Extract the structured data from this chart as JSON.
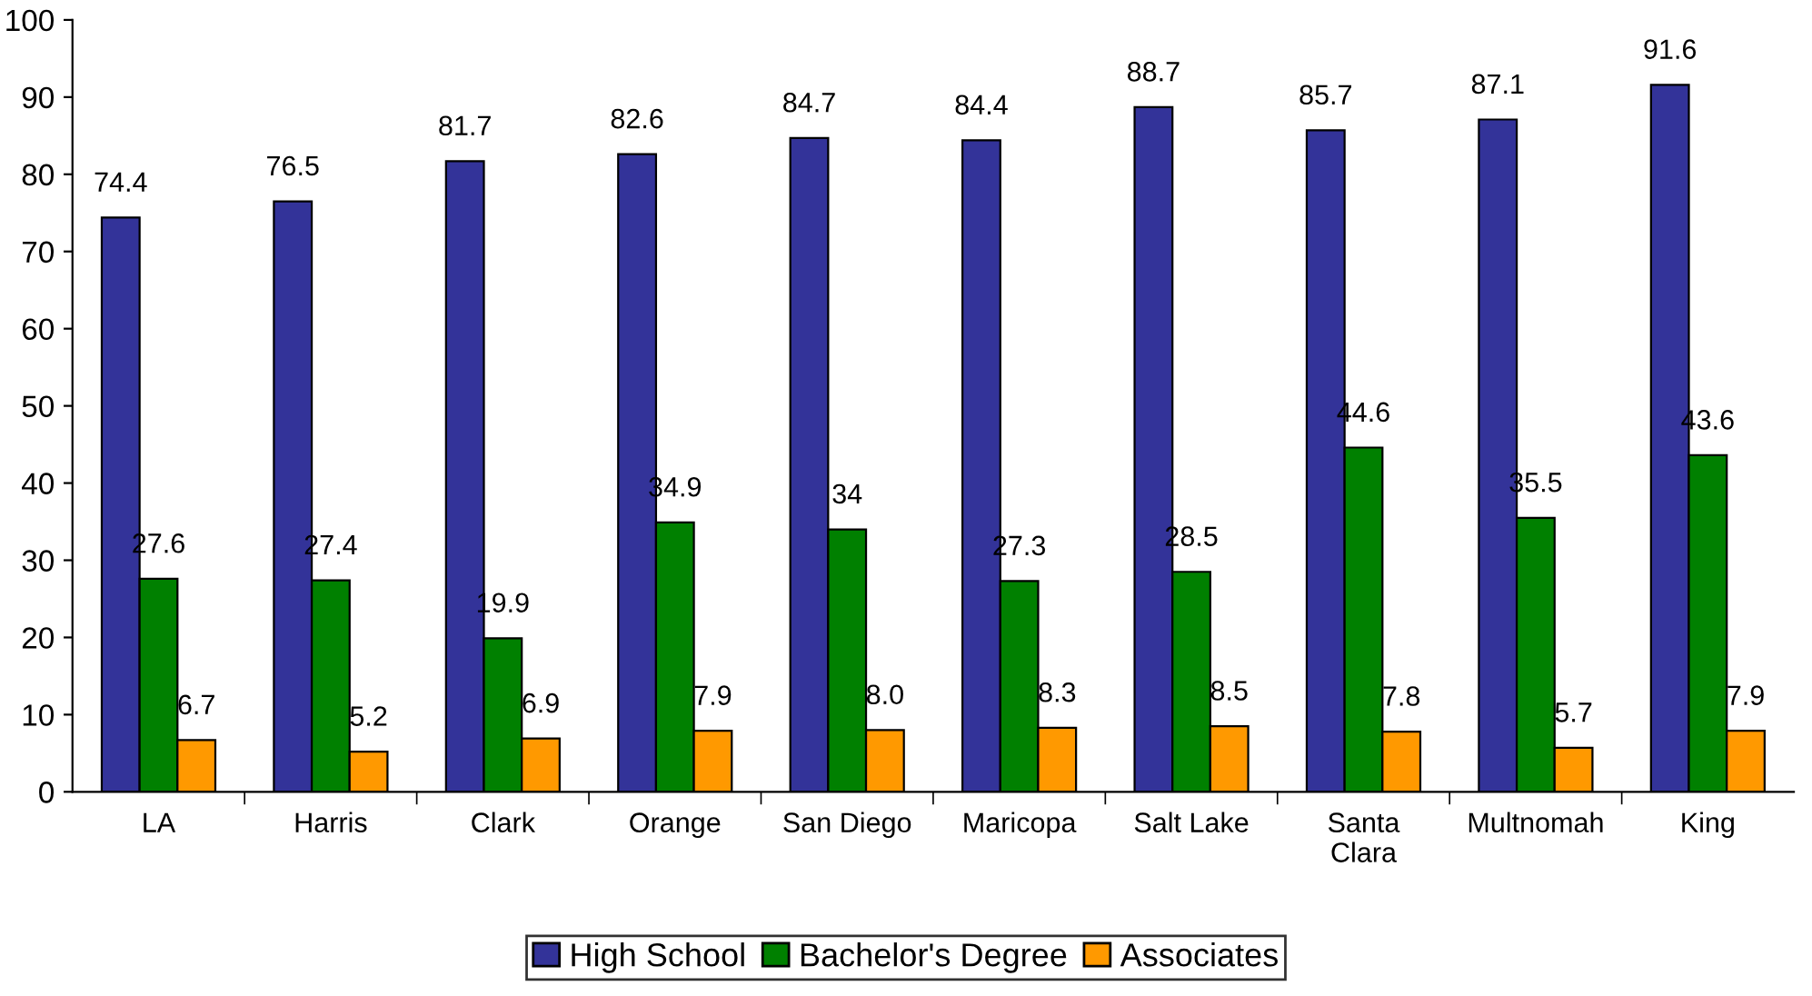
{
  "chart_data": {
    "type": "bar",
    "categories": [
      "LA",
      "Harris",
      "Clark",
      "Orange",
      "San Diego",
      "Maricopa",
      "Salt Lake",
      "Santa Clara",
      "Multnomah",
      "King"
    ],
    "series": [
      {
        "name": "High School",
        "color": "#333399",
        "values": [
          74.4,
          76.5,
          81.7,
          82.6,
          84.7,
          84.4,
          88.7,
          85.7,
          87.1,
          91.6
        ],
        "value_labels": [
          "74.4",
          "76.5",
          "81.7",
          "82.6",
          "84.7",
          "84.4",
          "88.7",
          "85.7",
          "87.1",
          "91.6"
        ]
      },
      {
        "name": "Bachelor's Degree",
        "color": "#008000",
        "values": [
          27.6,
          27.4,
          19.9,
          34.9,
          34,
          27.3,
          28.5,
          44.6,
          35.5,
          43.6
        ],
        "value_labels": [
          "27.6",
          "27.4",
          "19.9",
          "34.9",
          "34",
          "27.3",
          "28.5",
          "44.6",
          "35.5",
          "43.6"
        ]
      },
      {
        "name": "Associates",
        "color": "#ff9900",
        "values": [
          6.7,
          5.2,
          6.9,
          7.9,
          8.0,
          8.3,
          8.5,
          7.8,
          5.7,
          7.9
        ],
        "value_labels": [
          "6.7",
          "5.2",
          "6.9",
          "7.9",
          "8.0",
          "8.3",
          "8.5",
          "7.8",
          "5.7",
          "7.9"
        ]
      }
    ],
    "ylim": [
      0,
      100
    ],
    "yticks": [
      0,
      10,
      20,
      30,
      40,
      50,
      60,
      70,
      80,
      90,
      100
    ],
    "legend": "bottom",
    "grid": false
  }
}
